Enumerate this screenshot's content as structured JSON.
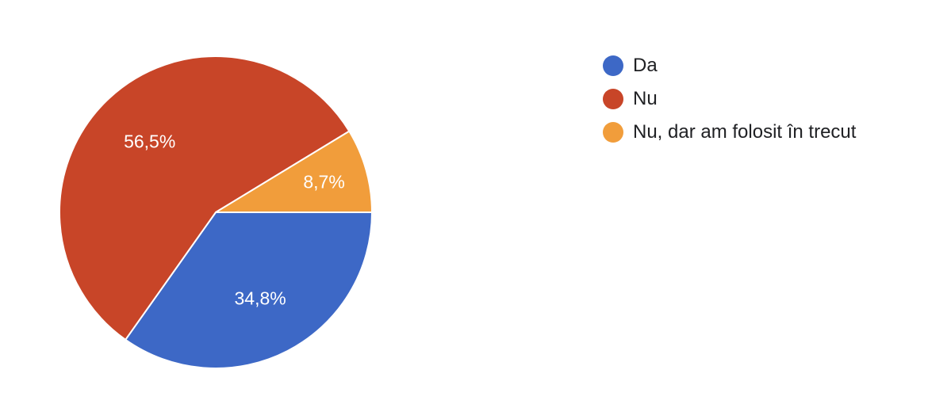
{
  "chart_data": {
    "type": "pie",
    "categories": [
      "Da",
      "Nu",
      "Nu, dar am folosit în trecut"
    ],
    "values": [
      34.8,
      56.5,
      8.7
    ],
    "data_labels": [
      "34,8%",
      "56,5%",
      "8,7%"
    ],
    "colors": [
      "#3d68c6",
      "#c84528",
      "#f19d3b"
    ],
    "legend_position": "right",
    "start_angle": "3 o'clock",
    "direction": "clockwise"
  },
  "legend": {
    "items": [
      {
        "label": "Da",
        "color": "#3d68c6"
      },
      {
        "label": "Nu",
        "color": "#c84528"
      },
      {
        "label": "Nu, dar am folosit în trecut",
        "color": "#f19d3b"
      }
    ]
  }
}
